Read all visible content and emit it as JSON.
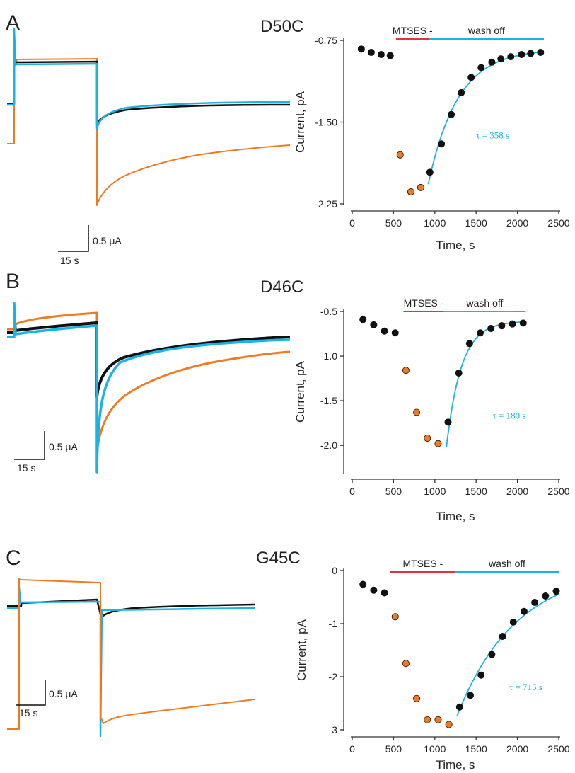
{
  "colors": {
    "black": "#111111",
    "orange": "#f07a22",
    "cyan": "#1ab3e6",
    "red": "#e6323c",
    "axis": "#333333"
  },
  "panels": [
    {
      "letter": "A",
      "mutant": "D50C",
      "scalebar": {
        "amplitude": "0.5 μA",
        "time": "15 s"
      }
    },
    {
      "letter": "B",
      "mutant": "D46C",
      "scalebar": {
        "amplitude": "0.5 μA",
        "time": "15 s"
      }
    },
    {
      "letter": "C",
      "mutant": "G45C",
      "scalebar": {
        "amplitude": "0.5 μA",
        "time": "15 s"
      }
    }
  ],
  "chart_data": [
    {
      "type": "scatter",
      "panel": "A",
      "xlabel": "Time, s",
      "ylabel": "Current, pA",
      "xlim": [
        0,
        2500
      ],
      "ylim": [
        -2.25,
        -0.75
      ],
      "xticks": [
        0,
        500,
        1000,
        1500,
        2000,
        2500
      ],
      "yticks": [
        -0.75,
        -1.5,
        -2.25
      ],
      "ytick_labels": [
        "-0.75",
        "-1.50",
        "-2.25"
      ],
      "series": [
        {
          "color": "black",
          "points": [
            [
              110,
              -0.83
            ],
            [
              230,
              -0.86
            ],
            [
              350,
              -0.88
            ],
            [
              460,
              -0.89
            ],
            [
              940,
              -1.96
            ],
            [
              1080,
              -1.7
            ],
            [
              1200,
              -1.43
            ],
            [
              1320,
              -1.23
            ],
            [
              1440,
              -1.09
            ],
            [
              1560,
              -1.0
            ],
            [
              1690,
              -0.95
            ],
            [
              1800,
              -0.92
            ],
            [
              1920,
              -0.9
            ],
            [
              2050,
              -0.88
            ],
            [
              2160,
              -0.87
            ],
            [
              2280,
              -0.86
            ]
          ]
        },
        {
          "color": "orange",
          "points": [
            [
              580,
              -1.8
            ],
            [
              710,
              -2.14
            ],
            [
              830,
              -2.1
            ]
          ]
        }
      ],
      "fit": {
        "t0": 920,
        "y_start": -2.07,
        "y_inf": -0.83,
        "tau": 358,
        "t_end": 2290
      },
      "tau_label": "τ = 358 s",
      "tau_pos": [
        1500,
        -1.65
      ],
      "bars": [
        {
          "label": "MTSES -",
          "from": 530,
          "to": 930,
          "color": "red"
        },
        {
          "label": "wash off",
          "from": 930,
          "to": 2320,
          "color": "cyan"
        }
      ]
    },
    {
      "type": "scatter",
      "panel": "B",
      "xlabel": "Time, s",
      "ylabel": "Current, pA",
      "xlim": [
        0,
        2500
      ],
      "ylim": [
        -2.3,
        -0.5
      ],
      "xticks": [
        0,
        500,
        1000,
        1500,
        2000,
        2500
      ],
      "yticks": [
        -0.5,
        -1.0,
        -1.5,
        -2.0
      ],
      "ytick_labels": [
        "-0.5",
        "-1.0",
        "-1.5",
        "-2.0"
      ],
      "series": [
        {
          "color": "black",
          "points": [
            [
              130,
              -0.59
            ],
            [
              260,
              -0.65
            ],
            [
              390,
              -0.72
            ],
            [
              520,
              -0.74
            ],
            [
              1160,
              -1.74
            ],
            [
              1290,
              -1.19
            ],
            [
              1420,
              -0.86
            ],
            [
              1550,
              -0.74
            ],
            [
              1680,
              -0.69
            ],
            [
              1810,
              -0.66
            ],
            [
              1940,
              -0.64
            ],
            [
              2070,
              -0.63
            ]
          ]
        },
        {
          "color": "orange",
          "points": [
            [
              650,
              -1.16
            ],
            [
              780,
              -1.63
            ],
            [
              910,
              -1.92
            ],
            [
              1040,
              -1.98
            ]
          ]
        }
      ],
      "fit": {
        "t0": 1140,
        "y_start": -2.02,
        "y_inf": -0.61,
        "tau": 180,
        "t_end": 2090
      },
      "tau_label": "τ = 180 s",
      "tau_pos": [
        1700,
        -1.7
      ],
      "bars": [
        {
          "label": "MTSES -",
          "from": 620,
          "to": 1110,
          "color": "red"
        },
        {
          "label": "wash off",
          "from": 1110,
          "to": 2100,
          "color": "cyan"
        }
      ]
    },
    {
      "type": "scatter",
      "panel": "C",
      "xlabel": "Time, s",
      "ylabel": "Current, pA",
      "xlim": [
        0,
        2500
      ],
      "ylim": [
        -3,
        0
      ],
      "xticks": [
        0,
        500,
        1000,
        1500,
        2000,
        2500
      ],
      "yticks": [
        0,
        -1,
        -2,
        -3
      ],
      "ytick_labels": [
        "0",
        "-1",
        "-2",
        "-3"
      ],
      "series": [
        {
          "color": "black",
          "points": [
            [
              130,
              -0.26
            ],
            [
              260,
              -0.37
            ],
            [
              390,
              -0.42
            ],
            [
              1300,
              -2.57
            ],
            [
              1430,
              -2.35
            ],
            [
              1560,
              -1.97
            ],
            [
              1690,
              -1.58
            ],
            [
              1820,
              -1.24
            ],
            [
              1950,
              -0.97
            ],
            [
              2080,
              -0.77
            ],
            [
              2210,
              -0.6
            ],
            [
              2340,
              -0.48
            ],
            [
              2470,
              -0.39
            ]
          ]
        },
        {
          "color": "orange",
          "points": [
            [
              520,
              -0.87
            ],
            [
              650,
              -1.75
            ],
            [
              780,
              -2.41
            ],
            [
              910,
              -2.81
            ],
            [
              1040,
              -2.81
            ],
            [
              1170,
              -2.9
            ]
          ]
        }
      ],
      "fit": {
        "t0": 1270,
        "y_start": -2.73,
        "y_inf": 0.05,
        "tau": 715,
        "t_end": 2500
      },
      "tau_label": "τ = 715 s",
      "tau_pos": [
        1900,
        -2.25
      ],
      "bars": [
        {
          "label": "MTSES -",
          "from": 460,
          "to": 1250,
          "color": "red"
        },
        {
          "label": "wash off",
          "from": 1250,
          "to": 2500,
          "color": "cyan"
        }
      ]
    }
  ]
}
